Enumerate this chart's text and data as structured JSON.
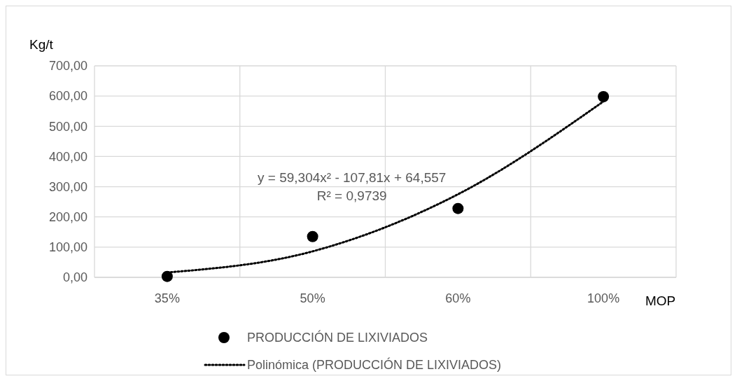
{
  "chart_data": {
    "type": "scatter",
    "xlabel": "MOP",
    "ylabel": "Kg/t",
    "categories": [
      "35%",
      "50%",
      "60%",
      "100%"
    ],
    "ylim": [
      0,
      700
    ],
    "yticks": [
      {
        "value": 0,
        "label": "0,00"
      },
      {
        "value": 100,
        "label": "100,00"
      },
      {
        "value": 200,
        "label": "200,00"
      },
      {
        "value": 300,
        "label": "300,00"
      },
      {
        "value": 400,
        "label": "400,00"
      },
      {
        "value": 500,
        "label": "500,00"
      },
      {
        "value": 600,
        "label": "600,00"
      },
      {
        "value": 700,
        "label": "700,00"
      }
    ],
    "series": [
      {
        "name": "PRODUCCIÓN DE LIXIVIADOS",
        "color": "#000000",
        "marker": "circle",
        "values": [
          3,
          135,
          228,
          598
        ]
      },
      {
        "name": "Polinómica (PRODUCCIÓN DE LIXIVIADOS)",
        "type": "line",
        "color": "#000000",
        "line_style": "dotted",
        "marker": "none",
        "values": [
          16,
          86,
          275,
          582
        ]
      }
    ],
    "annotations": [
      "y = 59,304x² - 107,81x + 64,557",
      "R² = 0,9739"
    ],
    "grid": true,
    "legend": "bottom"
  }
}
